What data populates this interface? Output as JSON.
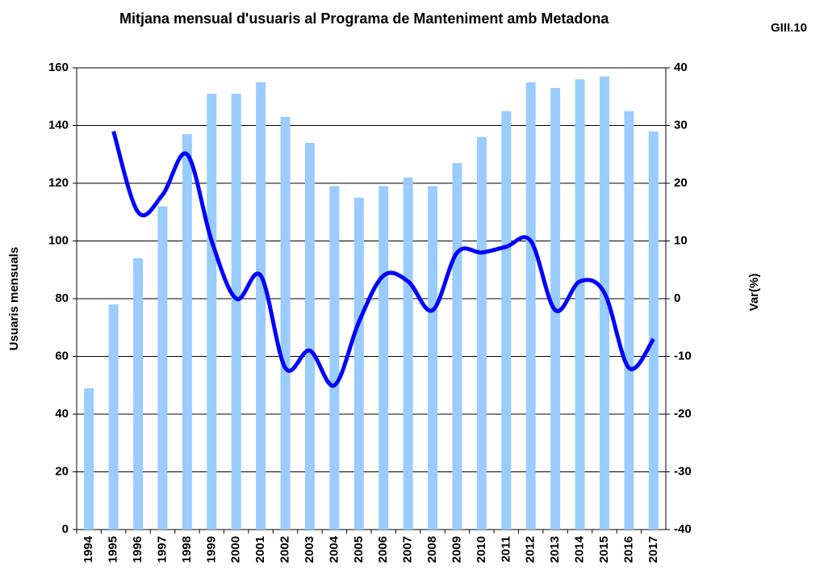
{
  "chart_data": {
    "type": "bar_line",
    "title": "Mitjana mensual d'usuaris al Programa de Manteniment amb Metadona",
    "annotation": "GIII.10",
    "ylabel": "Usuaris mensuals",
    "y2label": "Var(%)",
    "categories": [
      "1994",
      "1995",
      "1996",
      "1997",
      "1998",
      "1999",
      "2000",
      "2001",
      "2002",
      "2003",
      "2004",
      "2005",
      "2006",
      "2007",
      "2008",
      "2009",
      "2010",
      "2011",
      "2012",
      "2013",
      "2014",
      "2015",
      "2016",
      "2017"
    ],
    "series": [
      {
        "type": "bar",
        "color": "#99ccff",
        "axis": "y",
        "values": [
          49,
          78,
          94,
          112,
          137,
          151,
          151,
          155,
          143,
          134,
          119,
          115,
          119,
          122,
          119,
          127,
          136,
          145,
          155,
          153,
          156,
          157,
          145,
          138
        ]
      },
      {
        "type": "line",
        "color": "#0000ff",
        "axis": "y2",
        "values": [
          null,
          29,
          15,
          18,
          25,
          10,
          0,
          4,
          -12,
          -9,
          -15,
          -4,
          4,
          3,
          -2,
          8,
          8,
          9,
          10,
          -2,
          3,
          1,
          -12,
          -7
        ]
      }
    ],
    "ylim": [
      0,
      160
    ],
    "yticks": [
      0,
      20,
      40,
      60,
      80,
      100,
      120,
      140,
      160
    ],
    "y2lim": [
      -40,
      40
    ],
    "y2ticks": [
      -40,
      -30,
      -20,
      -10,
      0,
      10,
      20,
      30,
      40
    ],
    "grid": true
  }
}
